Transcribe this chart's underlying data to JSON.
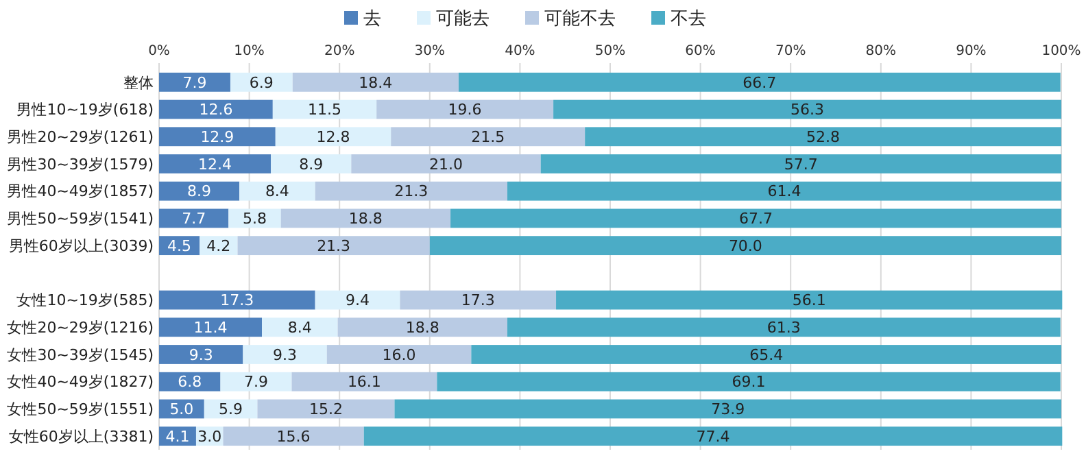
{
  "chart_data": {
    "type": "bar",
    "orientation": "horizontal",
    "stacked": true,
    "categories": [
      "整体",
      "男性10~19岁(618)",
      "男性20~29岁(1261)",
      "男性30~39岁(1579)",
      "男性40~49岁(1857)",
      "男性50~59岁(1541)",
      "男性60岁以上(3039)",
      null,
      "女性10~19岁(585)",
      "女性20~29岁(1216)",
      "女性30~39岁(1545)",
      "女性40~49岁(1827)",
      "女性50~59岁(1551)",
      "女性60岁以上(3381)"
    ],
    "series": [
      {
        "name": "去",
        "color": "#4f81bd",
        "values": [
          7.9,
          12.6,
          12.9,
          12.4,
          8.9,
          7.7,
          4.5,
          null,
          17.3,
          11.4,
          9.3,
          6.8,
          5.0,
          4.1
        ],
        "value_labels": [
          "7.9",
          "12.6",
          "12.9",
          "12.4",
          "8.9",
          "7.7",
          "4.5",
          null,
          "17.3",
          "11.4",
          "9.3",
          "6.8",
          "5.0",
          "4.1"
        ]
      },
      {
        "name": "可能去",
        "color": "#dcf1fc",
        "values": [
          6.9,
          11.5,
          12.8,
          8.9,
          8.4,
          5.8,
          4.2,
          null,
          9.4,
          8.4,
          9.3,
          7.9,
          5.9,
          3.0
        ],
        "value_labels": [
          "6.9",
          "11.5",
          "12.8",
          "8.9",
          "8.4",
          "5.8",
          "4.2",
          null,
          "9.4",
          "8.4",
          "9.3",
          "7.9",
          "5.9",
          "3.0"
        ]
      },
      {
        "name": "可能不去",
        "color": "#b9cbe4",
        "values": [
          18.4,
          19.6,
          21.5,
          21.0,
          21.3,
          18.8,
          21.3,
          null,
          17.3,
          18.8,
          16.0,
          16.1,
          15.2,
          15.6
        ],
        "value_labels": [
          "18.4",
          "19.6",
          "21.5",
          "21.0",
          "21.3",
          "18.8",
          "21.3",
          null,
          "17.3",
          "18.8",
          "16.0",
          "16.1",
          "15.2",
          "15.6"
        ]
      },
      {
        "name": "不去",
        "color": "#4bacc6",
        "values": [
          66.7,
          56.3,
          52.8,
          57.7,
          61.4,
          67.7,
          70.0,
          null,
          56.1,
          61.3,
          65.4,
          69.1,
          73.9,
          77.4
        ],
        "value_labels": [
          "66.7",
          "56.3",
          "52.8",
          "57.7",
          "61.4",
          "67.7",
          "70.0",
          null,
          "56.1",
          "61.3",
          "65.4",
          "69.1",
          "73.9",
          "77.4"
        ]
      }
    ],
    "xlim": [
      0,
      100
    ],
    "xticks": [
      {
        "value": 0,
        "label": "0%"
      },
      {
        "value": 10,
        "label": "10%"
      },
      {
        "value": 20,
        "label": "20%"
      },
      {
        "value": 30,
        "label": "30%"
      },
      {
        "value": 40,
        "label": "40%"
      },
      {
        "value": 50,
        "label": "50%"
      },
      {
        "value": 60,
        "label": "60%"
      },
      {
        "value": 70,
        "label": "70%"
      },
      {
        "value": 80,
        "label": "80%"
      },
      {
        "value": 90,
        "label": "90%"
      },
      {
        "value": 100,
        "label": "100%"
      }
    ],
    "grid": "x",
    "legend": "top"
  }
}
